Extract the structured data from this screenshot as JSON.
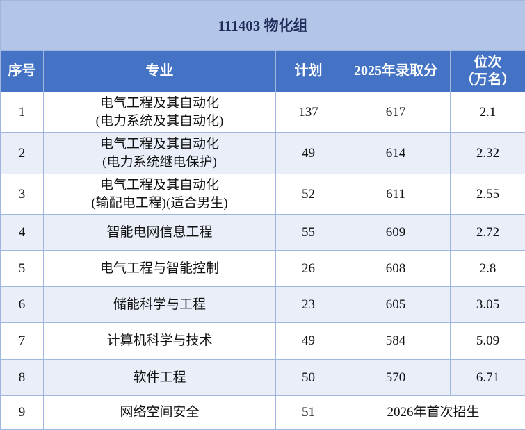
{
  "title": "111403 物化组",
  "table": {
    "headers": [
      "序号",
      "专业",
      "计划",
      "2025年录取分",
      [
        "位次",
        "（万名）"
      ]
    ],
    "rows": [
      [
        1,
        [
          "电气工程及其自动化",
          "(电力系统及其自动化)"
        ],
        137,
        617,
        2.1
      ],
      [
        2,
        [
          "电气工程及其自动化",
          "(电力系统继电保护)"
        ],
        49,
        614,
        2.32
      ],
      [
        3,
        [
          "电气工程及其自动化",
          "(输配电工程)(适合男生)"
        ],
        52,
        611,
        2.55
      ],
      [
        4,
        [
          "智能电网信息工程"
        ],
        55,
        609,
        2.72
      ],
      [
        5,
        [
          "电气工程与智能控制"
        ],
        26,
        608,
        2.8
      ],
      [
        6,
        [
          "储能科学与工程"
        ],
        23,
        605,
        3.05
      ],
      [
        7,
        [
          "计算机科学与技术"
        ],
        49,
        584,
        5.09
      ],
      [
        8,
        [
          "软件工程"
        ],
        50,
        570,
        6.71
      ],
      [
        9,
        [
          "网络空间安全"
        ],
        51,
        "2026年首次招生"
      ]
    ]
  }
}
